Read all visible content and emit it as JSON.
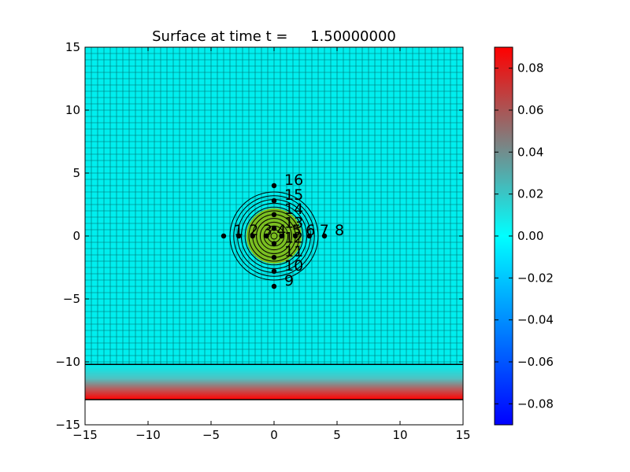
{
  "chart_data": [
    {
      "type": "heatmap",
      "title": "Surface at time t =     1.50000000",
      "xlabel": "",
      "ylabel": "",
      "xlim": [
        -15,
        15
      ],
      "ylim": [
        -15,
        15
      ],
      "x_ticks": [
        -15,
        -10,
        -5,
        0,
        5,
        10,
        15
      ],
      "y_ticks": [
        -15,
        -10,
        -5,
        0,
        5,
        10,
        15
      ],
      "x_tick_labels": [
        "−15",
        "−10",
        "−5",
        "0",
        "5",
        "10",
        "15"
      ],
      "y_tick_labels": [
        "−15",
        "−10",
        "−5",
        "0",
        "5",
        "10",
        "15"
      ],
      "grid": true,
      "grid_spacing": 0.5,
      "background_color": "#00eeee",
      "wall_line_y": -10.2,
      "shore_band": {
        "y_from": -13,
        "y_to": -10.2
      },
      "bump": {
        "center": [
          0,
          0
        ],
        "radius": 2.2,
        "color": "#8fb800"
      },
      "contour_radii": [
        3.5,
        3.2,
        2.9,
        2.6,
        2.3,
        2.0,
        1.7,
        1.4,
        1.1,
        0.8,
        0.5,
        0.25
      ],
      "gauges": [
        {
          "label": "1",
          "x": -4.0,
          "y": 0.0
        },
        {
          "label": "2",
          "x": -2.8,
          "y": 0.0
        },
        {
          "label": "3",
          "x": -1.7,
          "y": 0.0
        },
        {
          "label": "4",
          "x": -0.6,
          "y": 0.0
        },
        {
          "label": "5",
          "x": 0.6,
          "y": 0.0
        },
        {
          "label": "6",
          "x": 1.7,
          "y": 0.0
        },
        {
          "label": "7",
          "x": 2.8,
          "y": 0.0
        },
        {
          "label": "8",
          "x": 4.0,
          "y": 0.0
        },
        {
          "label": "9",
          "x": 0.0,
          "y": -4.0
        },
        {
          "label": "10",
          "x": 0.0,
          "y": -2.8
        },
        {
          "label": "11",
          "x": 0.0,
          "y": -1.7
        },
        {
          "label": "12",
          "x": 0.0,
          "y": -0.6
        },
        {
          "label": "13",
          "x": 0.0,
          "y": 0.6
        },
        {
          "label": "14",
          "x": 0.0,
          "y": 1.7
        },
        {
          "label": "15",
          "x": 0.0,
          "y": 2.8
        },
        {
          "label": "16",
          "x": 0.0,
          "y": 4.0
        }
      ]
    },
    {
      "type": "colorbar",
      "range": [
        -0.09,
        0.09
      ],
      "ticks": [
        -0.08,
        -0.06,
        -0.04,
        -0.02,
        0.0,
        0.02,
        0.04,
        0.06,
        0.08
      ],
      "tick_labels": [
        "−0.08",
        "−0.06",
        "−0.04",
        "−0.02",
        "0.00",
        "0.02",
        "0.04",
        "0.06",
        "0.08"
      ],
      "colors": [
        "#0000ff",
        "#00ffff",
        "#ff0000"
      ]
    }
  ]
}
